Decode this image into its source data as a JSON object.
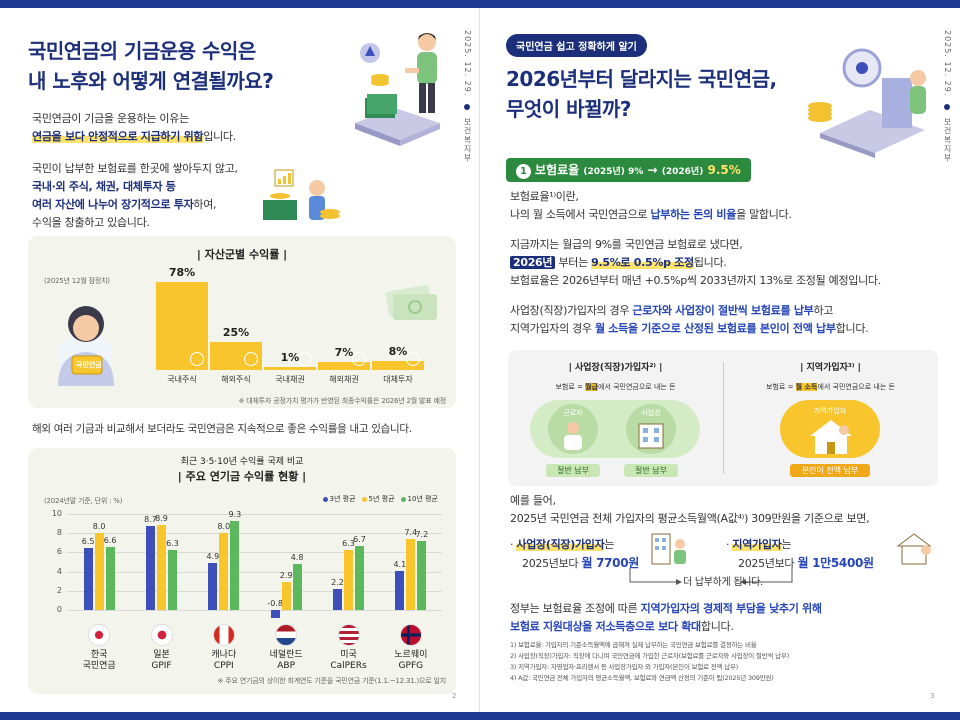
{
  "left": {
    "title_line1": "국민연금의 기금운용 수익은",
    "title_line2": "내 노후와 어떻게 연결될까요?",
    "date": "2025. 12. 29.",
    "ministry": "보건복지부",
    "intro1": "국민연금이 기금을 운용하는 이유는",
    "intro2_hl": "연금을 보다 안정적으로 지급하기 위함",
    "intro2_tail": "입니다.",
    "intro3": "국민이 납부한 보험료를 한곳에 쌓아두지 않고,",
    "intro4": "국내·외 주식, 채권, 대체투자 등",
    "intro5_blue": "여러 자산에 나누어 장기적으로 투자",
    "intro5_tail": "하여,",
    "intro6": "수익을 창출하고 있습니다.",
    "asset_card": {
      "title": "| 자산군별 수익률 |",
      "basis": "(2025년 12월 잠정치)",
      "figure_label": "국민연금",
      "note": "※ 대체투자 공정가치 평가가 반영된 최종수익률은 2026년 2월 발표 예정"
    },
    "compare_text": "해외 여러 기금과 비교해서 보더라도 국민연금은 지속적으로 좋은 수익률을 내고 있습니다.",
    "pension_card": {
      "subtitle": "최근 3·5·10년 수익률 국제 비교",
      "title": "| 주요 연기금 수익률 현황 |",
      "basis": "(2024년말 기준, 단위 : %)",
      "note": "※ 주요 연기금의 상이한 회계연도 기준을 국민연금 기준(1.1.~12.31.)으로 일치"
    },
    "page_number": "2"
  },
  "chart_data": [
    {
      "type": "bar",
      "title": "| 자산군별 수익률 |",
      "categories": [
        "국내주식",
        "해외주식",
        "국내채권",
        "해외채권",
        "대체투자"
      ],
      "values": [
        78,
        25,
        1,
        7,
        8
      ],
      "value_labels": [
        "78%",
        "25%",
        "1%",
        "7%",
        "8%"
      ],
      "colors": [
        "#f8c52c"
      ]
    },
    {
      "type": "bar",
      "title": "| 주요 연기금 수익률 현황 |",
      "categories": [
        "한국 국민연금",
        "일본 GPIF",
        "캐나다 CPPI",
        "네덜란드 ABP",
        "미국 CalPERs",
        "노르웨이 GPFG"
      ],
      "category_lines": [
        [
          "한국",
          "국민연금"
        ],
        [
          "일본",
          "GPIF"
        ],
        [
          "캐나다",
          "CPPI"
        ],
        [
          "네덜란드",
          "ABP"
        ],
        [
          "미국",
          "CalPERs"
        ],
        [
          "노르웨이",
          "GPFG"
        ]
      ],
      "series": [
        {
          "name": "3년 평균",
          "values": [
            6.5,
            8.7,
            4.9,
            -0.8,
            2.2,
            4.1
          ],
          "color": "#3d4fb8"
        },
        {
          "name": "5년 평균",
          "values": [
            8.0,
            8.9,
            8.0,
            2.9,
            6.3,
            7.4
          ],
          "color": "#f8c52c"
        },
        {
          "name": "10년 평균",
          "values": [
            6.6,
            6.3,
            9.3,
            4.8,
            6.7,
            7.2
          ],
          "color": "#5cb85c"
        }
      ],
      "ylim": [
        -1,
        10
      ],
      "yticks": [
        0,
        2,
        4,
        6,
        8,
        10
      ],
      "legend": "top-right",
      "grid": true
    }
  ],
  "right": {
    "badge": "국민연금 쉽고 정확하게 알기",
    "title_line1": "2026년부터 달라지는 국민연금,",
    "title_line2": "무엇이 바뀔까?",
    "date": "2025. 12. 29.",
    "ministry": "보건복지부",
    "section1_num": "1",
    "section1_label": "보험료율",
    "section1_from": "(2025년) 9%",
    "section1_arrow": "→",
    "section1_to_year": "(2026년)",
    "section1_to_val": "9.5%",
    "def1": "보험료율¹⁾이란,",
    "def2_pre": "나의 월 소득에서 국민연금으로 ",
    "def2_blue": "납부하는 돈의 비율",
    "def2_tail": "을 말합니다.",
    "p2a": "지금까지는 월급의 9%를 국민연금 보험료로 냈다면,",
    "p2b_hl1": "2026년",
    "p2b_mid": " 부터는 ",
    "p2b_hl2": "9.5%로 0.5%p 조정",
    "p2b_tail": "됩니다.",
    "p2c": "보험료율은 2026년부터 매년 +0.5%p씩 2033년까지 13%로 조정될 예정입니다.",
    "p3a_pre": "사업장(직장)가입자의 경우 ",
    "p3a_blue": "근로자와 사업장이 절반씩 보험료를 납부",
    "p3a_tail": "하고",
    "p3b_pre": "지역가입자의 경우 ",
    "p3b_blue": "월 소득을 기준으로 산정된 보험료를 본인이 전액 납부",
    "p3b_tail": "합니다.",
    "panel_left": {
      "title": "| 사업장(직장)가입자²⁾ |",
      "sub_pre": "보험료 = ",
      "sub_hl": "월급",
      "sub_tail": "에서 국민연금으로 내는 돈",
      "label_worker": "근로자",
      "label_company": "사업장",
      "tag1": "절반 납부",
      "tag2": "절반 납부"
    },
    "panel_right": {
      "title": "| 지역가입자³⁾ |",
      "sub_pre": "보험료 = ",
      "sub_hl": "월 소득",
      "sub_tail": "에서 국민연금으로 내는 돈",
      "label_local": "지역가입자",
      "tag": "본인이 전액 납부"
    },
    "ex1": "예를 들어,",
    "ex2": "2025년 국민연금 전체 가입자의 평균소득월액(A값⁴⁾) 309만원을 기준으로 보면,",
    "ex_left_hl": "사업장(직장)가입자",
    "ex_left_tail": "는",
    "ex_left_line2_pre": "2025년보다 ",
    "ex_left_line2_val": "월 7700원",
    "ex_right_hl": "지역가입자",
    "ex_right_tail": "는",
    "ex_right_line2_pre": "2025년보다 ",
    "ex_right_line2_val": "월 1만5400원",
    "more_pay": "더 납부하게 됩니다.",
    "gov1_pre": "정부는 보험료율 조정에 따른 ",
    "gov1_blue": "지역가입자의 경제적 부담을 낮추기 위해",
    "gov2_blue": "보험료 지원대상을 저소득층으로 보다 확대",
    "gov2_tail": "합니다.",
    "footnotes": [
      "1) 보험료율: 가입자의 기준소득월액에 곱해져 실제 납부하는 국민연금 보험료를 결정하는 비율",
      "2) 사업장(직장)가입자: 직장에 다니며 국민연금에 가입한 근로자(보험료를 근로자와 사업장이 절반씩 납부)",
      "3) 지역가입자: 자영업자·프리랜서 등 사업장가입자 외 가입자(본인이 보험료 전액 납부)",
      "4) A값: 국민연금 전체 가입자의 평균소득월액, 보험료와 연금액 산정의 기준이 됨(2025년 309만원)"
    ],
    "page_number": "3"
  }
}
